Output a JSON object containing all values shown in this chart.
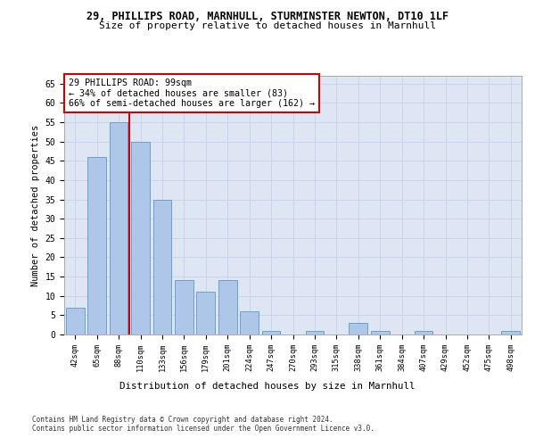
{
  "title1": "29, PHILLIPS ROAD, MARNHULL, STURMINSTER NEWTON, DT10 1LF",
  "title2": "Size of property relative to detached houses in Marnhull",
  "xlabel": "Distribution of detached houses by size in Marnhull",
  "ylabel": "Number of detached properties",
  "footer1": "Contains HM Land Registry data © Crown copyright and database right 2024.",
  "footer2": "Contains public sector information licensed under the Open Government Licence v3.0.",
  "categories": [
    "42sqm",
    "65sqm",
    "88sqm",
    "110sqm",
    "133sqm",
    "156sqm",
    "179sqm",
    "201sqm",
    "224sqm",
    "247sqm",
    "270sqm",
    "293sqm",
    "315sqm",
    "338sqm",
    "361sqm",
    "384sqm",
    "407sqm",
    "429sqm",
    "452sqm",
    "475sqm",
    "498sqm"
  ],
  "values": [
    7,
    46,
    55,
    50,
    35,
    14,
    11,
    14,
    6,
    1,
    0,
    1,
    0,
    3,
    1,
    0,
    1,
    0,
    0,
    0,
    1
  ],
  "bar_color": "#aec6e8",
  "bar_edge_color": "#6aa0d0",
  "vline_x": 2.5,
  "vline_color": "#cc0000",
  "annotation_text": "29 PHILLIPS ROAD: 99sqm\n← 34% of detached houses are smaller (83)\n66% of semi-detached houses are larger (162) →",
  "annotation_box_color": "#ffffff",
  "annotation_box_edge_color": "#cc0000",
  "ylim": [
    0,
    67
  ],
  "yticks": [
    0,
    5,
    10,
    15,
    20,
    25,
    30,
    35,
    40,
    45,
    50,
    55,
    60,
    65
  ],
  "grid_color": "#c8d4e8",
  "background_color": "#dde6f2"
}
